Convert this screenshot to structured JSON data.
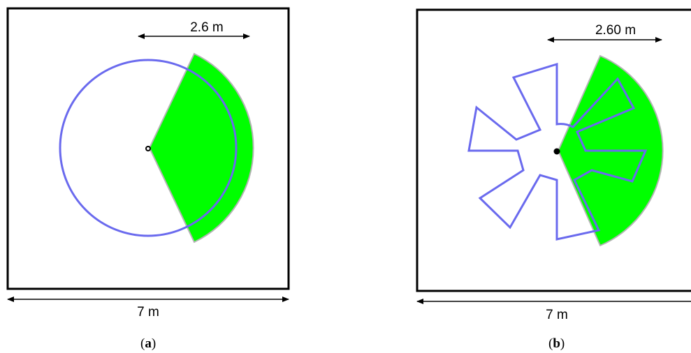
{
  "panels": [
    {
      "id": "a",
      "caption_open": "(",
      "caption_letter": "a",
      "caption_close": ")",
      "room_width_label": "7 m",
      "range_label": "2.6 m"
    },
    {
      "id": "b",
      "caption_open": "(",
      "caption_letter": "b",
      "caption_close": ")",
      "room_width_label": "7 m",
      "range_label": "2.60 m"
    }
  ],
  "colors": {
    "coverage": "#00ff00",
    "outline": "#6a6aee",
    "room": "#000000"
  }
}
